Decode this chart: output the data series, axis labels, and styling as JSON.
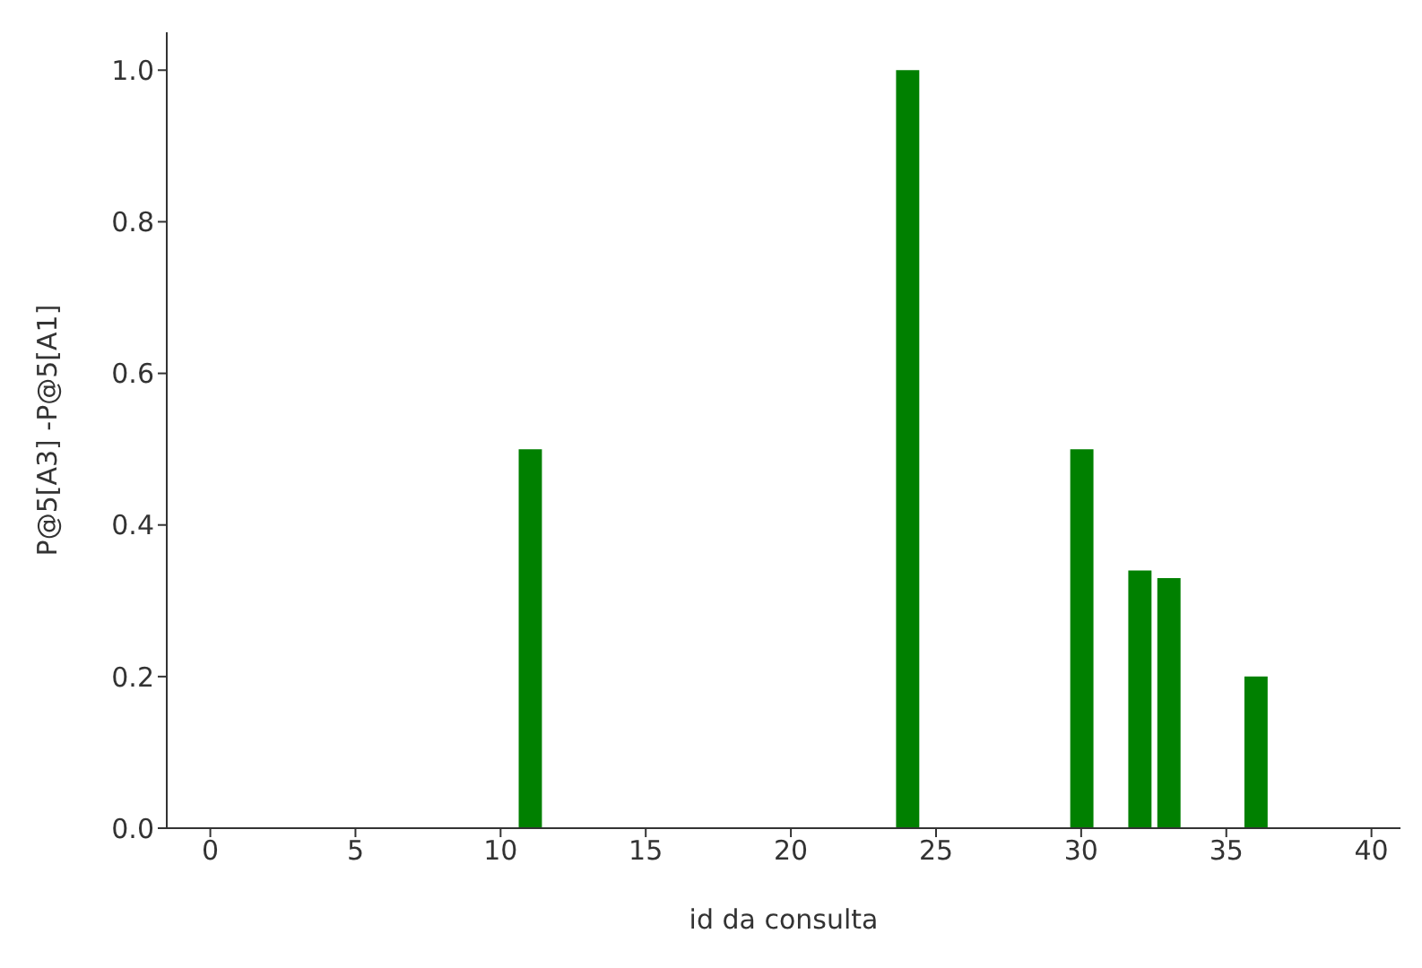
{
  "chart_data": {
    "type": "bar",
    "xlabel": "id da consulta",
    "ylabel": "P@5[A3] -P@5[A1]",
    "x": [
      11,
      24,
      30,
      32,
      33,
      36
    ],
    "values": [
      0.5,
      1.0,
      0.5,
      0.34,
      0.33,
      0.2
    ],
    "color": "#008000",
    "xlim": [
      -1.5,
      41
    ],
    "xticks": [
      0,
      5,
      10,
      15,
      20,
      25,
      30,
      35,
      40
    ],
    "ylim": [
      0,
      1.05
    ],
    "yticks": [
      {
        "value": 0,
        "label": "0.0"
      },
      {
        "value": 0.2,
        "label": "0.2"
      },
      {
        "value": 0.4,
        "label": "0.4"
      },
      {
        "value": 0.6,
        "label": "0.6"
      },
      {
        "value": 0.8,
        "label": "0.8"
      },
      {
        "value": 1,
        "label": "1.0"
      }
    ],
    "grid": false
  }
}
